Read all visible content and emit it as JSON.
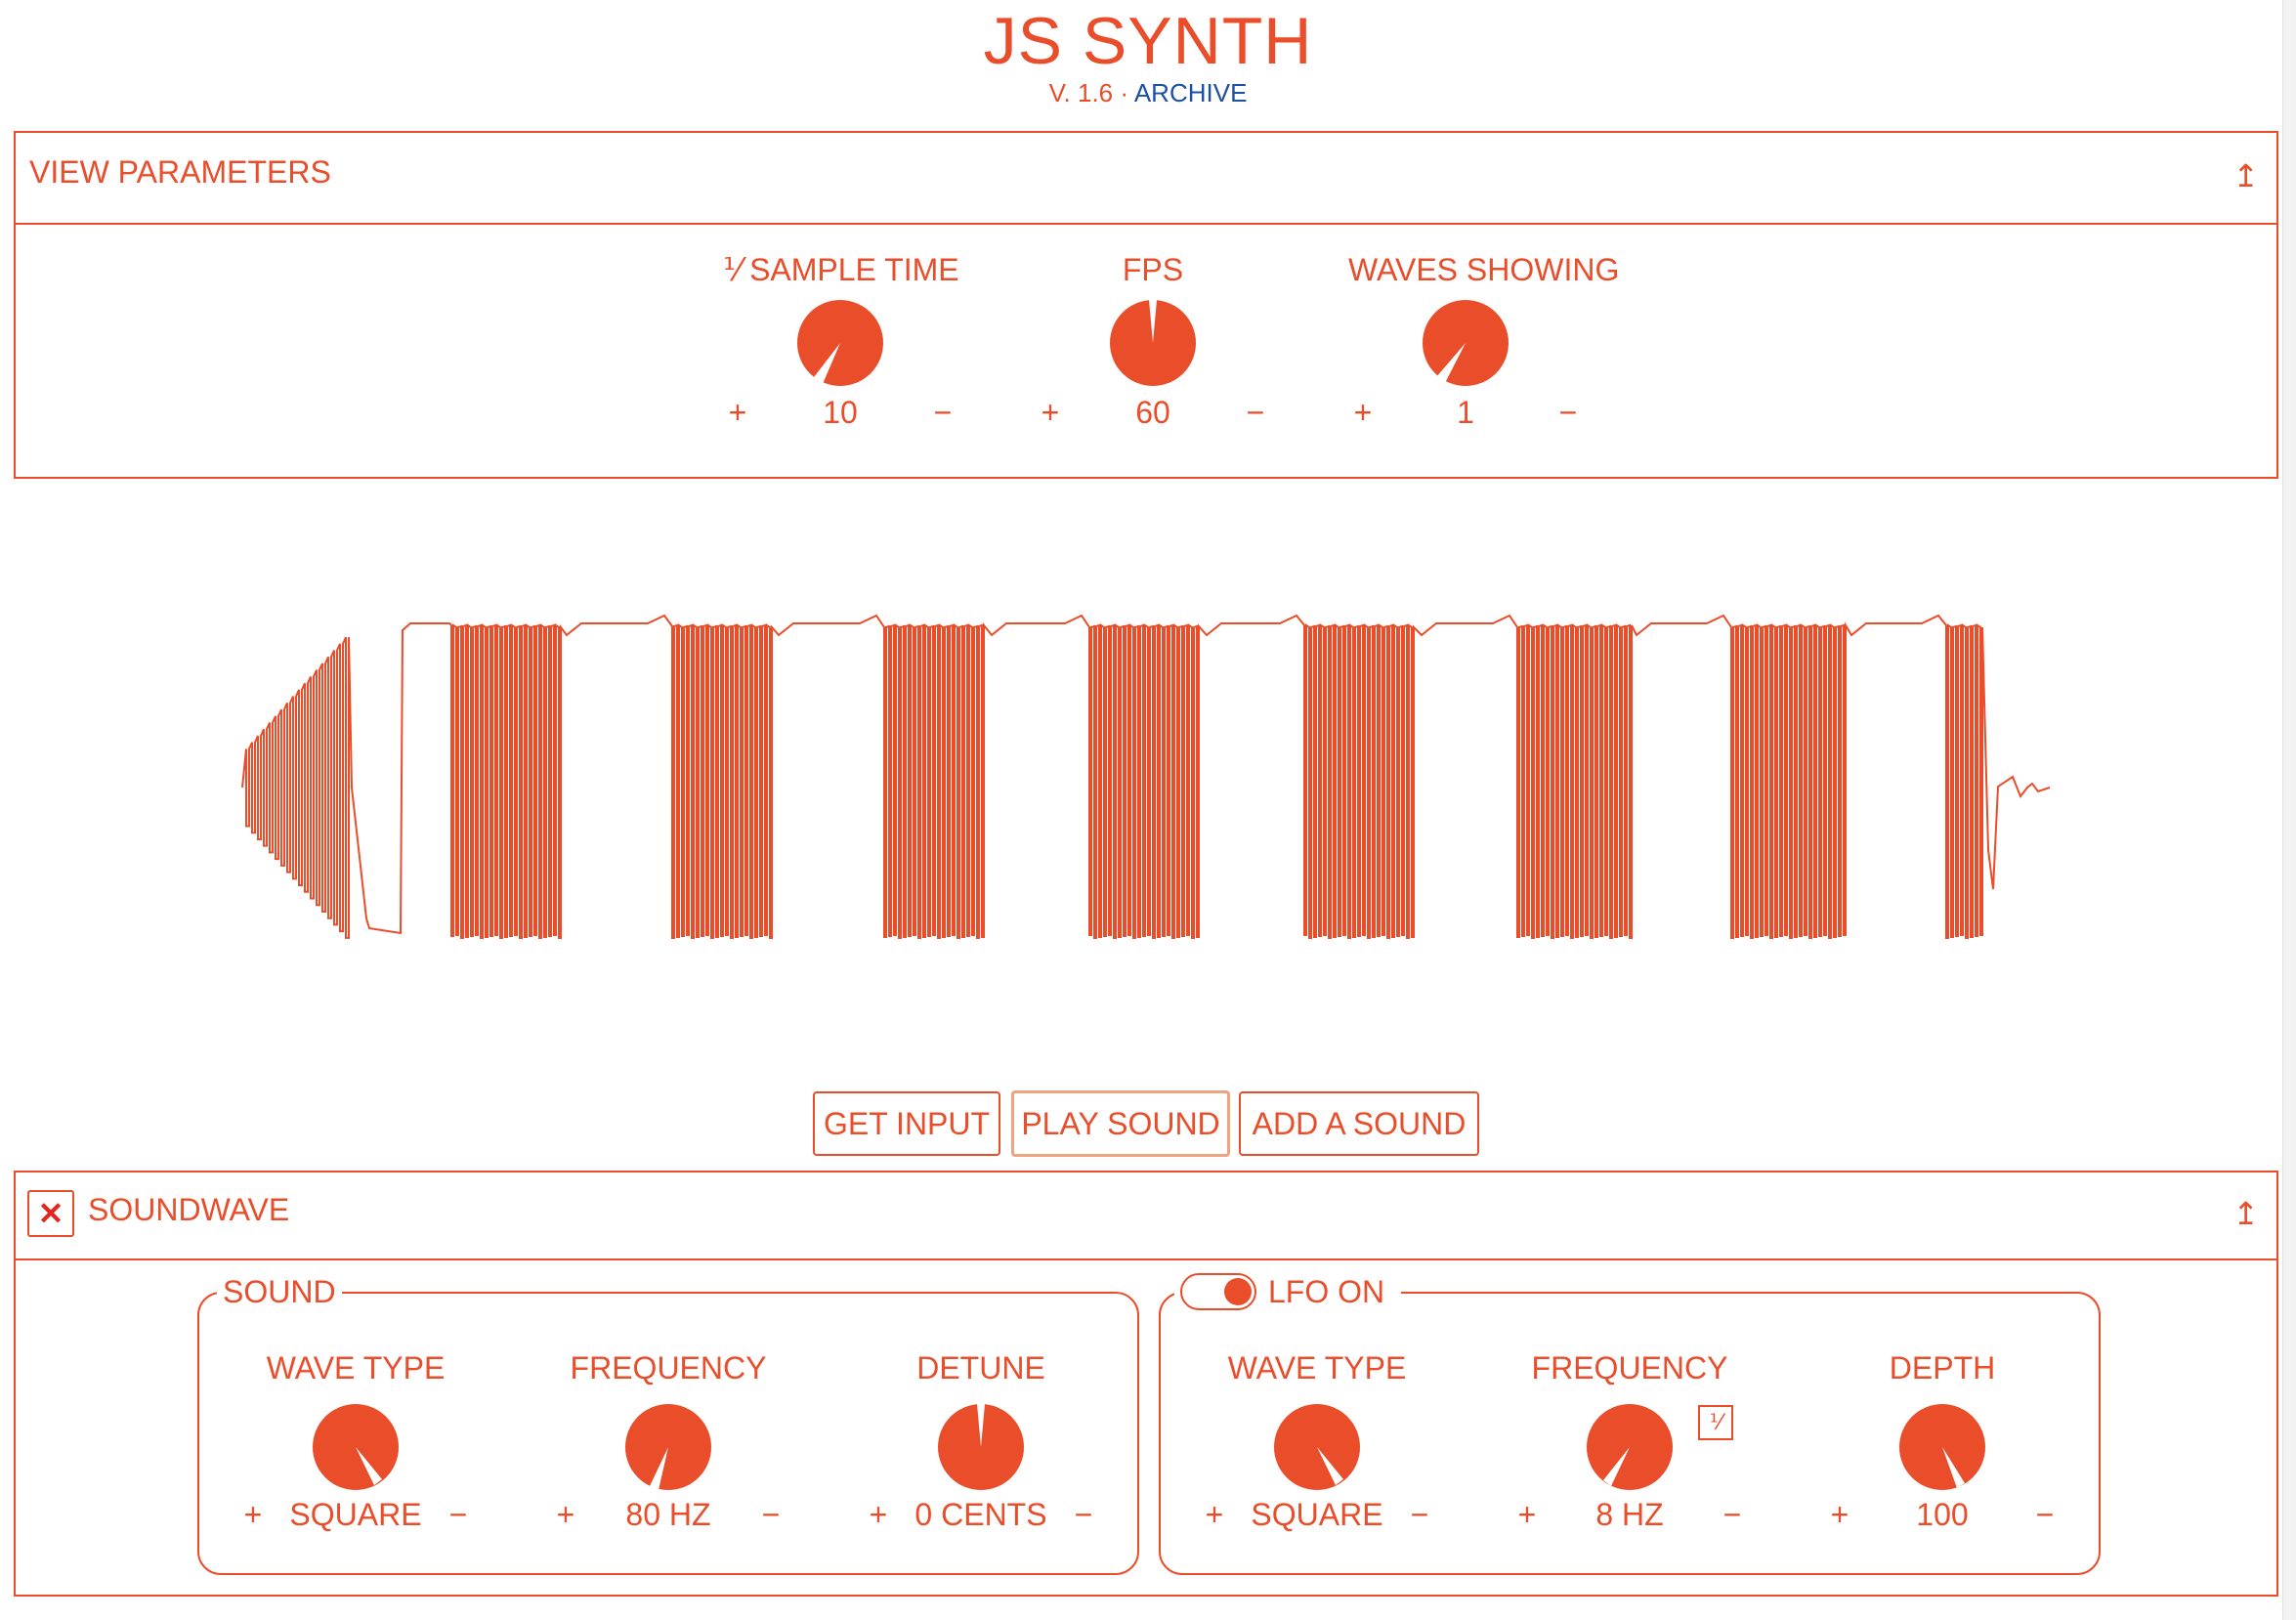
{
  "header": {
    "title": "JS SYNTH",
    "version": "V. 1.6",
    "separator": "·",
    "archive_link": "ARCHIVE"
  },
  "view_panel": {
    "title": "VIEW PARAMETERS",
    "collapse_icon": "↥",
    "controls": [
      {
        "label": "⅟ SAMPLE TIME",
        "value": "10",
        "plus": "+",
        "minus": "−"
      },
      {
        "label": "FPS",
        "value": "60",
        "plus": "+",
        "minus": "−"
      },
      {
        "label": "WAVES SHOWING",
        "value": "1",
        "plus": "+",
        "minus": "−"
      }
    ]
  },
  "waveform": {
    "color": "#ea4d2a",
    "shape": "square-wave-with-lfo-envelope"
  },
  "buttons": {
    "get_input": "GET INPUT",
    "play_sound": "PLAY SOUND",
    "add_sound": "ADD A SOUND"
  },
  "soundwave_panel": {
    "close_icon": "✕",
    "title": "SOUNDWAVE",
    "collapse_icon": "↥",
    "sound_group": {
      "legend": "SOUND",
      "controls": [
        {
          "label": "WAVE TYPE",
          "value": "SQUARE",
          "plus": "+",
          "minus": "−"
        },
        {
          "label": "FREQUENCY",
          "value": "80 HZ",
          "plus": "+",
          "minus": "−"
        },
        {
          "label": "DETUNE",
          "value": "0 CENTS",
          "plus": "+",
          "minus": "−"
        }
      ]
    },
    "lfo_group": {
      "legend": "LFO ON",
      "toggle_on": true,
      "freq_toggle": "⅟",
      "controls": [
        {
          "label": "WAVE TYPE",
          "value": "SQUARE",
          "plus": "+",
          "minus": "−"
        },
        {
          "label": "FREQUENCY",
          "value": "8 HZ",
          "plus": "+",
          "minus": "−"
        },
        {
          "label": "DEPTH",
          "value": "100",
          "plus": "+",
          "minus": "−"
        }
      ]
    }
  },
  "colors": {
    "accent": "#ea4d2a",
    "link": "#1d4fa6",
    "active_border": "#eea47f"
  }
}
